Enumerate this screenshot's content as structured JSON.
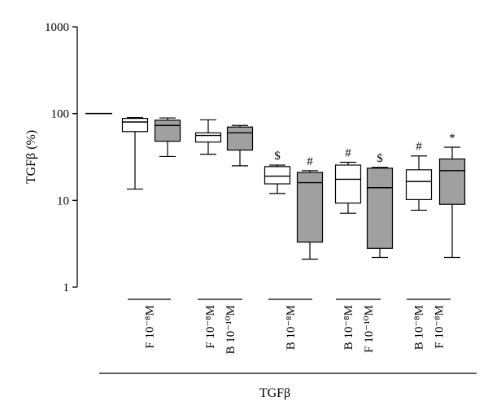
{
  "chart_data": {
    "type": "box",
    "ylabel": "TGFβ (%)",
    "xlabel": "TGFβ",
    "yscale": "log",
    "ylim": [
      1,
      1000
    ],
    "yticks": [
      "1",
      "10",
      "100",
      "1000"
    ],
    "groups": [
      {
        "label_lines": [
          "F 10⁻⁸M"
        ]
      },
      {
        "label_lines": [
          "F 10⁻⁸M",
          "B 10⁻¹⁰M"
        ]
      },
      {
        "label_lines": [
          "B 10⁻⁸M"
        ]
      },
      {
        "label_lines": [
          "B 10⁻⁸M",
          "F 10⁻¹⁰M"
        ]
      },
      {
        "label_lines": [
          "B 10⁻⁸M",
          "F 10⁻⁸M"
        ]
      }
    ],
    "control": {
      "value": 100
    },
    "colors": {
      "white_box": "#ffffff",
      "gray_box": "#a0a0a0",
      "stroke": "#000000"
    },
    "boxes": [
      {
        "group": 0,
        "fill": "white",
        "min": 13.5,
        "q1": 62,
        "median": 80,
        "q3": 88,
        "max": 90,
        "annotation": ""
      },
      {
        "group": 0,
        "fill": "gray",
        "min": 32,
        "q1": 48,
        "median": 73,
        "q3": 84,
        "max": 89,
        "annotation": ""
      },
      {
        "group": 1,
        "fill": "white",
        "min": 34,
        "q1": 47,
        "median": 56,
        "q3": 60,
        "max": 85,
        "annotation": ""
      },
      {
        "group": 1,
        "fill": "gray",
        "min": 25,
        "q1": 38,
        "median": 60,
        "q3": 70,
        "max": 73,
        "annotation": ""
      },
      {
        "group": 2,
        "fill": "white",
        "min": 12,
        "q1": 15.5,
        "median": 19,
        "q3": 24.5,
        "max": 25.5,
        "annotation": "$"
      },
      {
        "group": 2,
        "fill": "gray",
        "min": 2.1,
        "q1": 3.3,
        "median": 16,
        "q3": 21,
        "max": 22,
        "annotation": "#"
      },
      {
        "group": 3,
        "fill": "white",
        "min": 7.1,
        "q1": 9.3,
        "median": 17.5,
        "q3": 25.5,
        "max": 27.5,
        "annotation": "#"
      },
      {
        "group": 3,
        "fill": "gray",
        "min": 2.2,
        "q1": 2.8,
        "median": 14,
        "q3": 23.5,
        "max": 24,
        "annotation": "$"
      },
      {
        "group": 4,
        "fill": "white",
        "min": 7.7,
        "q1": 10.2,
        "median": 16.5,
        "q3": 22.5,
        "max": 32.5,
        "annotation": "#"
      },
      {
        "group": 4,
        "fill": "gray",
        "min": 2.2,
        "q1": 9,
        "median": 22,
        "q3": 30,
        "max": 41,
        "annotation": "*"
      }
    ]
  }
}
